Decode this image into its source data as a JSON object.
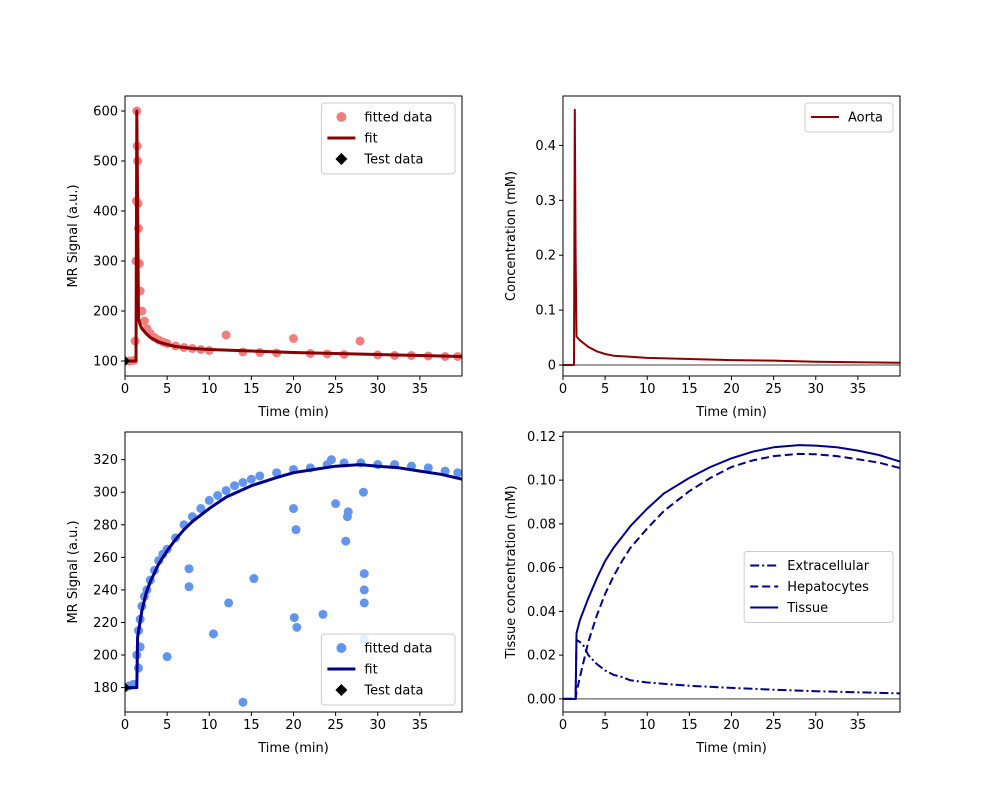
{
  "chart_data": [
    {
      "type": "scatter",
      "xlabel": "Time (min)",
      "ylabel": "MR Signal (a.u.)",
      "xlim": [
        0,
        40
      ],
      "ylim": [
        70,
        630
      ],
      "xticks": [
        0,
        5,
        10,
        15,
        20,
        25,
        30,
        35
      ],
      "yticks": [
        100,
        200,
        300,
        400,
        500,
        600
      ],
      "legend": {
        "position": "top-right",
        "entries": [
          "fitted data",
          "fit",
          "Test data"
        ]
      },
      "colors": {
        "data": "#f08080",
        "fit": "#8b0000",
        "test": "#000000"
      },
      "series": [
        {
          "name": "fitted data",
          "kind": "scatter",
          "x": [
            0,
            0.5,
            1.0,
            1.2,
            1.3,
            1.35,
            1.4,
            1.45,
            1.5,
            1.55,
            1.6,
            1.7,
            1.8,
            2.0,
            2.3,
            2.6,
            3.0,
            3.5,
            4.0,
            4.5,
            5.0,
            6.0,
            7.0,
            8.0,
            9.0,
            10.0,
            12.0,
            14.0,
            16.0,
            18.0,
            20.0,
            22.0,
            24.0,
            26.0,
            27.9,
            30.0,
            32.0,
            34.0,
            36.0,
            38.0,
            39.5
          ],
          "y": [
            100,
            100,
            101,
            140,
            300,
            420,
            600,
            530,
            500,
            415,
            365,
            295,
            240,
            200,
            180,
            165,
            155,
            147,
            142,
            138,
            135,
            130,
            127,
            125,
            123,
            121,
            152,
            118,
            117,
            116,
            145,
            115,
            114,
            113,
            140,
            112,
            111,
            111,
            110,
            109,
            109
          ]
        },
        {
          "name": "fit",
          "kind": "line",
          "x": [
            0,
            1.3,
            1.4,
            1.5,
            1.6,
            1.8,
            2.0,
            2.5,
            3.0,
            4.0,
            5.0,
            6.0,
            8.0,
            10.0,
            15.0,
            20.0,
            25.0,
            30.0,
            35.0,
            40.0
          ],
          "y": [
            100,
            100,
            600,
            420,
            185,
            172,
            165,
            155,
            147,
            138,
            133,
            129,
            125,
            123,
            120,
            117,
            115,
            113,
            111,
            109
          ]
        },
        {
          "name": "Test data",
          "kind": "marker",
          "x": [
            0
          ],
          "y": [
            100
          ]
        }
      ]
    },
    {
      "type": "line",
      "xlabel": "Time (min)",
      "ylabel": "Concentration (mM)",
      "xlim": [
        0,
        40
      ],
      "ylim": [
        -0.02,
        0.49
      ],
      "xticks": [
        0,
        5,
        10,
        15,
        20,
        25,
        30,
        35
      ],
      "yticks": [
        0.0,
        0.1,
        0.2,
        0.3,
        0.4
      ],
      "legend": {
        "position": "top-right",
        "entries": [
          "Aorta"
        ]
      },
      "colors": {
        "aorta": "#8b0000",
        "baseline": "#808080"
      },
      "series": [
        {
          "name": "Aorta",
          "x": [
            0,
            1.3,
            1.4,
            1.5,
            1.6,
            2.0,
            3.0,
            4.0,
            5.0,
            6.0,
            8.0,
            10.0,
            15.0,
            20.0,
            25.0,
            30.0,
            35.0,
            40.0
          ],
          "y": [
            0,
            0,
            0.465,
            0.2,
            0.052,
            0.045,
            0.033,
            0.025,
            0.02,
            0.017,
            0.015,
            0.013,
            0.011,
            0.009,
            0.008,
            0.006,
            0.005,
            0.004
          ]
        }
      ]
    },
    {
      "type": "scatter",
      "xlabel": "Time (min)",
      "ylabel": "MR Signal (a.u.)",
      "xlim": [
        0,
        40
      ],
      "ylim": [
        165,
        337
      ],
      "xticks": [
        0,
        5,
        10,
        15,
        20,
        25,
        30,
        35
      ],
      "yticks": [
        180,
        200,
        220,
        240,
        260,
        280,
        300,
        320
      ],
      "legend": {
        "position": "bottom-right",
        "entries": [
          "fitted data",
          "fit",
          "Test data"
        ]
      },
      "colors": {
        "data": "#6495ed",
        "fit": "#00008b",
        "test": "#000000"
      },
      "series": [
        {
          "name": "fitted data",
          "kind": "scatter",
          "x": [
            0,
            0.5,
            1.0,
            1.4,
            1.6,
            1.8,
            2.0,
            2.3,
            2.6,
            3.0,
            3.5,
            4.0,
            4.5,
            5.0,
            6.0,
            7.0,
            8.0,
            9.0,
            10.0,
            11.0,
            12.0,
            13.0,
            14.0,
            15.0,
            16.0,
            18.0,
            20.0,
            22.0,
            24.0,
            26.0,
            28.0,
            30.0,
            32.0,
            34.0,
            36.0,
            38.0,
            39.5,
            1.6,
            1.8,
            5.0,
            7.6,
            7.6,
            10.5,
            12.3,
            14.0,
            15.3,
            20.1,
            20.4,
            23.5,
            26.4,
            26.5,
            28.4,
            28.4,
            28.4,
            28.4,
            28.3,
            20.0,
            20.3,
            25.0,
            26.2,
            24.5
          ],
          "y": [
            180,
            181,
            182,
            200,
            215,
            222,
            230,
            236,
            240,
            246,
            252,
            258,
            262,
            265,
            272,
            280,
            285,
            290,
            295,
            298,
            301,
            304,
            306,
            308,
            310,
            312,
            314,
            315,
            317,
            318,
            318,
            317,
            317,
            316,
            315,
            313,
            312,
            192,
            205,
            199,
            242,
            253,
            213,
            232,
            171,
            247,
            223,
            217,
            225,
            285,
            288,
            250,
            240,
            232,
            210,
            300,
            290,
            277,
            293,
            270,
            320
          ]
        },
        {
          "name": "fit",
          "kind": "line",
          "x": [
            0,
            1.4,
            1.5,
            2.0,
            2.5,
            3.0,
            4.0,
            5.0,
            6.0,
            7.0,
            8.0,
            10.0,
            12.0,
            15.0,
            18.0,
            20.0,
            22.5,
            25.0,
            27.9,
            30.0,
            32.5,
            35.0,
            37.5,
            40.0
          ],
          "y": [
            180,
            180,
            211,
            227,
            238,
            245,
            256,
            264,
            271,
            277,
            282,
            290,
            297,
            304,
            309,
            312,
            314,
            316,
            317,
            316,
            315,
            313,
            311,
            308
          ]
        },
        {
          "name": "Test data",
          "kind": "marker",
          "x": [
            0
          ],
          "y": [
            180
          ]
        }
      ]
    },
    {
      "type": "line",
      "xlabel": "Time (min)",
      "ylabel": "Tissue concentration (mM)",
      "xlim": [
        0,
        40
      ],
      "ylim": [
        -0.006,
        0.122
      ],
      "xticks": [
        0,
        5,
        10,
        15,
        20,
        25,
        30,
        35
      ],
      "yticks": [
        0.0,
        0.02,
        0.04,
        0.06,
        0.08,
        0.1,
        0.12
      ],
      "ytick_labels": [
        "0.00",
        "0.02",
        "0.04",
        "0.06",
        "0.08",
        "0.10",
        "0.12"
      ],
      "legend": {
        "position": "center-right",
        "entries": [
          "Extracellular",
          "Hepatocytes",
          "Tissue"
        ]
      },
      "colors": {
        "lines": "#00008b",
        "baseline": "#808080"
      },
      "series": [
        {
          "name": "Extracellular",
          "dash": "dash-dot",
          "x": [
            0,
            1.5,
            1.6,
            2.0,
            2.5,
            3.0,
            4.0,
            5.0,
            6.0,
            7.0,
            8.0,
            10.0,
            15.0,
            20.0,
            25.0,
            30.0,
            35.0,
            40.0
          ],
          "y": [
            0,
            0,
            0.027,
            0.026,
            0.024,
            0.02,
            0.016,
            0.013,
            0.011,
            0.01,
            0.0085,
            0.0075,
            0.006,
            0.005,
            0.0042,
            0.0035,
            0.003,
            0.0025
          ]
        },
        {
          "name": "Hepatocytes",
          "dash": "dashed",
          "x": [
            0,
            1.5,
            1.6,
            2.0,
            3.0,
            4.0,
            5.0,
            6.0,
            7.0,
            8.0,
            10.0,
            12.0,
            15.0,
            17.5,
            20.0,
            22.5,
            25.0,
            28.0,
            30.0,
            32.5,
            35.0,
            37.5,
            40.0
          ],
          "y": [
            0,
            0,
            0.003,
            0.01,
            0.026,
            0.038,
            0.048,
            0.056,
            0.063,
            0.069,
            0.078,
            0.086,
            0.095,
            0.101,
            0.106,
            0.109,
            0.111,
            0.112,
            0.1118,
            0.111,
            0.1095,
            0.108,
            0.1055
          ]
        },
        {
          "name": "Tissue",
          "dash": "solid",
          "x": [
            0,
            1.5,
            1.6,
            2.0,
            3.0,
            4.0,
            5.0,
            6.0,
            7.0,
            8.0,
            10.0,
            12.0,
            15.0,
            17.5,
            20.0,
            22.5,
            25.0,
            28.0,
            30.0,
            32.5,
            35.0,
            37.5,
            40.0
          ],
          "y": [
            0,
            0,
            0.03,
            0.036,
            0.046,
            0.055,
            0.063,
            0.069,
            0.074,
            0.079,
            0.087,
            0.094,
            0.101,
            0.106,
            0.11,
            0.113,
            0.115,
            0.116,
            0.1158,
            0.115,
            0.1135,
            0.1115,
            0.1085
          ]
        }
      ]
    }
  ]
}
